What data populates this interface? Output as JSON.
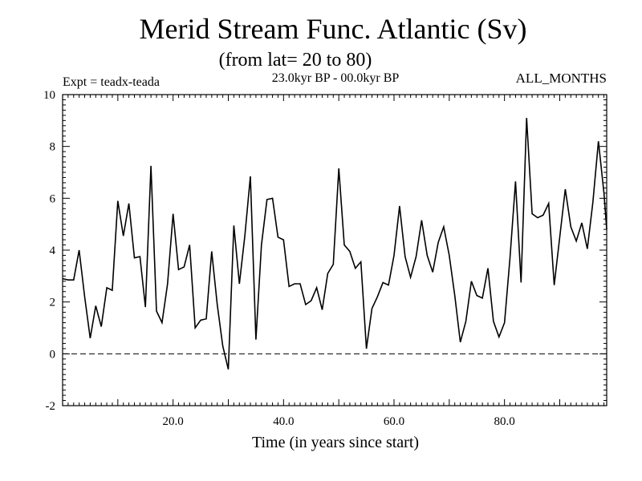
{
  "chart_data": {
    "type": "line",
    "title": "Merid Stream Func. Atlantic (Sv)",
    "subtitle": "(from lat= 20 to 80)",
    "experiment_label": "Expt = teadx-teada",
    "period_label": "23.0kyr BP - 00.0kyr BP",
    "months_label": "ALL_MONTHS",
    "xlabel": "Time (in years since start)",
    "ylabel": "",
    "xlim": [
      0,
      98.5
    ],
    "ylim": [
      -2,
      10
    ],
    "x_ticks": [
      20,
      40,
      60,
      80
    ],
    "x_tick_labels": [
      "20.0",
      "40.0",
      "60.0",
      "80.0"
    ],
    "y_ticks": [
      -2,
      0,
      2,
      4,
      6,
      8,
      10
    ],
    "y_tick_labels": [
      "-2",
      "0",
      "2",
      "4",
      "6",
      "8",
      "10"
    ],
    "reference_line": {
      "y": 0,
      "style": "dashed"
    },
    "series": [
      {
        "name": "Merid Stream Func.",
        "x": [
          0,
          1,
          2,
          3,
          4,
          5,
          6,
          7,
          8,
          9,
          10,
          11,
          12,
          13,
          14,
          15,
          16,
          17,
          18,
          19,
          20,
          21,
          22,
          23,
          24,
          25,
          26,
          27,
          28,
          29,
          30,
          31,
          32,
          33,
          34,
          35,
          36,
          37,
          38,
          39,
          40,
          41,
          42,
          43,
          44,
          45,
          46,
          47,
          48,
          49,
          50,
          51,
          52,
          53,
          54,
          55,
          56,
          57,
          58,
          59,
          60,
          61,
          62,
          63,
          64,
          65,
          66,
          67,
          68,
          69,
          70,
          71,
          72,
          73,
          74,
          75,
          76,
          77,
          78,
          79,
          80,
          81,
          82,
          83,
          84,
          85,
          86,
          87,
          88,
          89,
          90,
          91,
          92,
          93,
          94,
          95,
          96,
          97,
          98,
          98.5
        ],
        "values": [
          2.9,
          2.85,
          2.85,
          4.0,
          2.2,
          0.6,
          1.85,
          1.05,
          2.55,
          2.45,
          5.9,
          4.55,
          5.8,
          3.7,
          3.75,
          1.8,
          7.25,
          1.65,
          1.2,
          2.7,
          5.4,
          3.25,
          3.35,
          4.2,
          1.0,
          1.3,
          1.35,
          3.95,
          1.9,
          0.3,
          -0.6,
          4.95,
          2.7,
          4.55,
          6.85,
          0.55,
          4.2,
          5.95,
          6.0,
          4.5,
          4.4,
          2.6,
          2.7,
          2.7,
          1.9,
          2.05,
          2.55,
          1.7,
          3.1,
          3.45,
          7.15,
          4.2,
          3.95,
          3.3,
          3.55,
          0.2,
          1.75,
          2.2,
          2.75,
          2.65,
          3.8,
          5.7,
          3.75,
          2.95,
          3.75,
          5.15,
          3.8,
          3.15,
          4.3,
          4.9,
          3.8,
          2.25,
          0.45,
          1.25,
          2.8,
          2.25,
          2.15,
          3.3,
          1.25,
          0.65,
          1.2,
          3.7,
          6.65,
          2.75,
          9.1,
          5.4,
          5.25,
          5.35,
          5.8,
          2.65,
          4.5,
          6.35,
          4.9,
          4.35,
          5.05,
          4.05,
          5.85,
          8.2,
          6.2,
          4.8
        ]
      }
    ]
  }
}
